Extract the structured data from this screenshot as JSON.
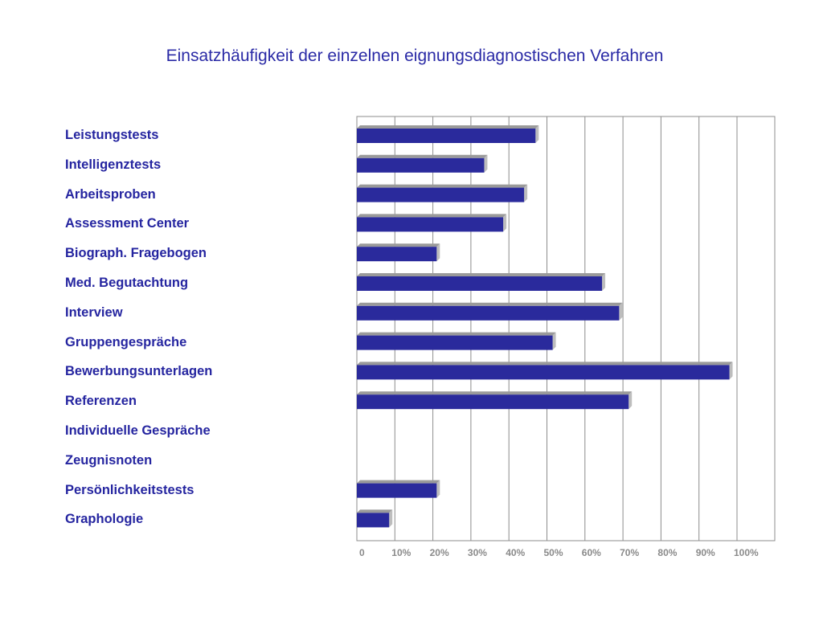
{
  "chart_data": {
    "type": "bar",
    "orientation": "horizontal",
    "title": "Einsatzhäufigkeit der einzelnen eignungsdiagnostischen Verfahren",
    "xlabel": "",
    "ylabel": "",
    "categories": [
      "Leistungstests",
      "Intelligenztests",
      "Arbeitsproben",
      "Assessment Center",
      "Biograph. Fragebogen",
      "Med. Begutachtung",
      "Interview",
      "Gruppengespräche",
      "Bewerbungsunterlagen",
      "Referenzen",
      "Individuelle Gespräche",
      "Zeugnisnoten",
      "Persönlichkeitstests",
      "Graphologie"
    ],
    "values": [
      47,
      33.5,
      44,
      38.5,
      21,
      64.5,
      69,
      51.5,
      98,
      71.5,
      null,
      null,
      21,
      8.5
    ],
    "xlim": [
      0,
      110
    ],
    "x_ticks": [
      0,
      10,
      20,
      30,
      40,
      50,
      60,
      70,
      80,
      90,
      100
    ],
    "x_tick_labels": [
      "0",
      "10%",
      "20%",
      "30%",
      "40%",
      "50%",
      "60%",
      "70%",
      "80%",
      "90%",
      "100%"
    ],
    "grid": "vertical",
    "legend": "none",
    "bar_color": "#2a2a9c",
    "bar_shadow_color": "#9a9a9a",
    "grid_color": "#8c8c8c",
    "tick_label_color": "#8a8a8a",
    "label_color": "#2525a0"
  }
}
